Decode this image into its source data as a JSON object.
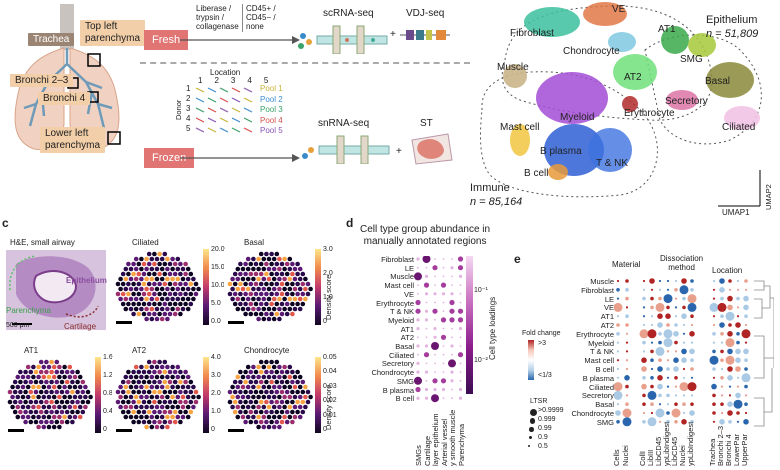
{
  "panel_a": {
    "lung_labels": {
      "trachea": "Trachea",
      "top_left": "Top left\nparenchyma",
      "bronchi23": "Bronchi 2–3",
      "bronchi4": "Bronchi 4",
      "lower_left": "Lower left\nparenchyma"
    },
    "fresh": "Fresh",
    "frozen": "Frozen",
    "dissociation": [
      "Liberase /",
      "trypsin /",
      "collagenase"
    ],
    "cd45": [
      "CD45+ /",
      "CD45− /",
      "none"
    ],
    "scrna": "scRNA-seq",
    "vdj": "VDJ-seq",
    "snrna": "snRNA-seq",
    "st": "ST",
    "location_title": "Location",
    "location_nums": [
      "1",
      "2",
      "3",
      "4",
      "5"
    ],
    "donor_title": "Donor",
    "donor_nums": [
      "1",
      "2",
      "3",
      "4",
      "5"
    ],
    "pools": [
      "Pool 1",
      "Pool 2",
      "Pool 3",
      "Pool 4",
      "Pool 5"
    ],
    "pool_colors": [
      "#c8b43a",
      "#3c8ed3",
      "#3aa36a",
      "#d6504b",
      "#8a55b8"
    ]
  },
  "panel_b": {
    "clusters": [
      "VE",
      "Fibroblast",
      "Chondrocyte",
      "AT1",
      "SMG",
      "Muscle",
      "AT2",
      "Basal",
      "Secretory",
      "Erythrocyte",
      "Myeloid",
      "Mast cell",
      "Ciliated",
      "B plasma",
      "T & NK",
      "B cell"
    ],
    "epithelium": "Epithelium",
    "epi_n": "n = 51,809",
    "immune": "Immune",
    "immune_n": "n = 85,164",
    "umap1": "UMAP1",
    "umap2": "UMAP2"
  },
  "panel_c": {
    "letter": "c",
    "he_title": "H&E, small airway",
    "epithelium": "Epithelium",
    "parenchyma": "Parenchyma",
    "cartilage": "Cartilage",
    "scale": "500 μm",
    "maps": [
      {
        "title": "Ciliated",
        "ticks": [
          "20.0",
          "15.0",
          "10.0",
          "5.0",
          "0.0"
        ]
      },
      {
        "title": "Basal",
        "ticks": [
          "3.0",
          "2.0",
          "1.0",
          "0"
        ]
      },
      {
        "title": "AT1",
        "ticks": [
          "1.6",
          "1.2",
          "0.8",
          "0.4",
          "0"
        ]
      },
      {
        "title": "AT2",
        "ticks": [
          "4.0",
          "3.0",
          "2.0",
          "1.0",
          "0"
        ]
      },
      {
        "title": "Chondrocyte",
        "ticks": [
          "0.05",
          "0.04",
          "0.03",
          "0.02",
          "0.01",
          "0"
        ]
      }
    ],
    "density": "Density score"
  },
  "panel_d": {
    "letter": "d",
    "title": "Cell type group abundance in\nmanually annotated regions",
    "rows": [
      "Fibroblast",
      "LE",
      "Muscle",
      "Mast cell",
      "VE",
      "Erythrocyte",
      "T & NK",
      "Myeloid",
      "AT1",
      "AT2",
      "Basal",
      "Ciliated",
      "Secretory",
      "Chondrocyte",
      "SMG",
      "B plasma",
      "B cell"
    ],
    "cols": [
      "SMGs",
      "Cartilage",
      "layer epithelium",
      "Arterial vessel",
      "y smooth muscle",
      "Parenchyma"
    ],
    "legend": "Cell type loadings",
    "legend_ticks": [
      "10⁻¹",
      "10⁻²"
    ]
  },
  "panel_e": {
    "letter": "e",
    "groups": [
      "Material",
      "Dissociation\nmethod",
      "Location"
    ],
    "rows": [
      "Muscle",
      "Fibroblast",
      "LE",
      "VE",
      "AT1",
      "AT2",
      "Erythrocyte",
      "Myeloid",
      "T & NK",
      "Mast cell",
      "B cell",
      "B plasma",
      "Ciliated",
      "Secretory",
      "Basal",
      "Chondrocyte",
      "SMG"
    ],
    "cols": [
      "Cells",
      "Nuclei",
      "CollI",
      "LibIII",
      "LibCD45",
      "ypLibIndigest",
      "LibCD45",
      "Nuclei",
      "ypLibIndigest",
      "Trachea",
      "Bronchi 2–3",
      "Bronchi 4",
      "LowerPar",
      "UpperPar"
    ],
    "fold_title": "Fold change",
    "fold_ticks": [
      ">3",
      "<1/3"
    ],
    "ltsr_title": "LTSR",
    "ltsr_items": [
      ">0.9999",
      "0.999",
      "0.99",
      "0.9",
      "0.5"
    ]
  }
}
